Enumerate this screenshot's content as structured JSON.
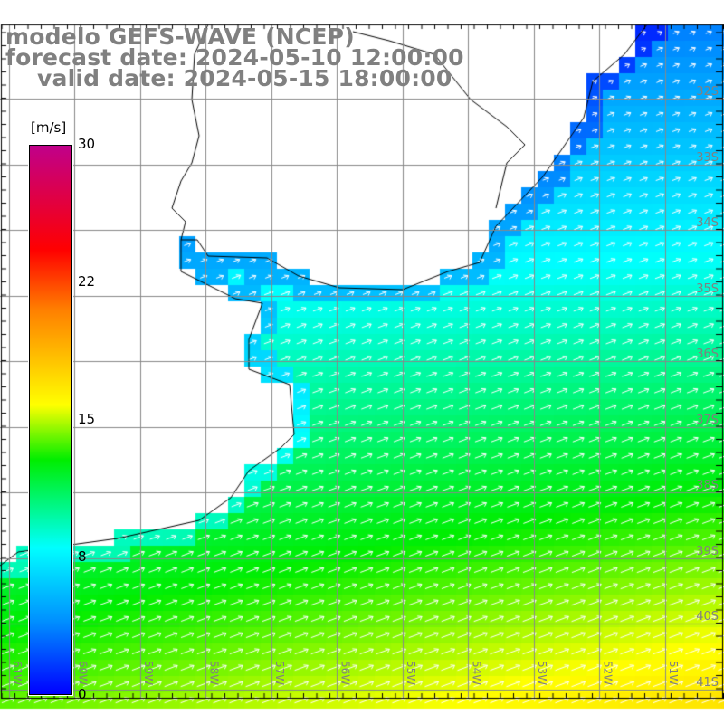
{
  "title": {
    "line1": "modelo GEFS-WAVE (NCEP)",
    "line2": "forecast date: 2024-05-10 12:00:00",
    "line3": "valid date: 2024-05-15 18:00:00"
  },
  "colorbar": {
    "unit": "[m/s]",
    "labels": [
      "30",
      "22",
      "15",
      "8",
      "0"
    ],
    "stops": [
      {
        "value": 0,
        "color": "#0000ff"
      },
      {
        "value": 4,
        "color": "#0090ff"
      },
      {
        "value": 8,
        "color": "#00ffff"
      },
      {
        "value": 12.8,
        "color": "#00ee00"
      },
      {
        "value": 15.8,
        "color": "#ffff00"
      },
      {
        "value": 21,
        "color": "#ff8000"
      },
      {
        "value": 24.3,
        "color": "#ff0000"
      },
      {
        "value": 30,
        "color": "#c0008a"
      }
    ]
  },
  "axes": {
    "lat_labels": [
      "32S",
      "33S",
      "34S",
      "35S",
      "36S",
      "37S",
      "38S",
      "39S",
      "40S",
      "41S"
    ],
    "lon_labels": [
      "61W",
      "60W",
      "59W",
      "58W",
      "57W",
      "56W",
      "55W",
      "54W",
      "53W",
      "52W",
      "51W"
    ]
  }
}
